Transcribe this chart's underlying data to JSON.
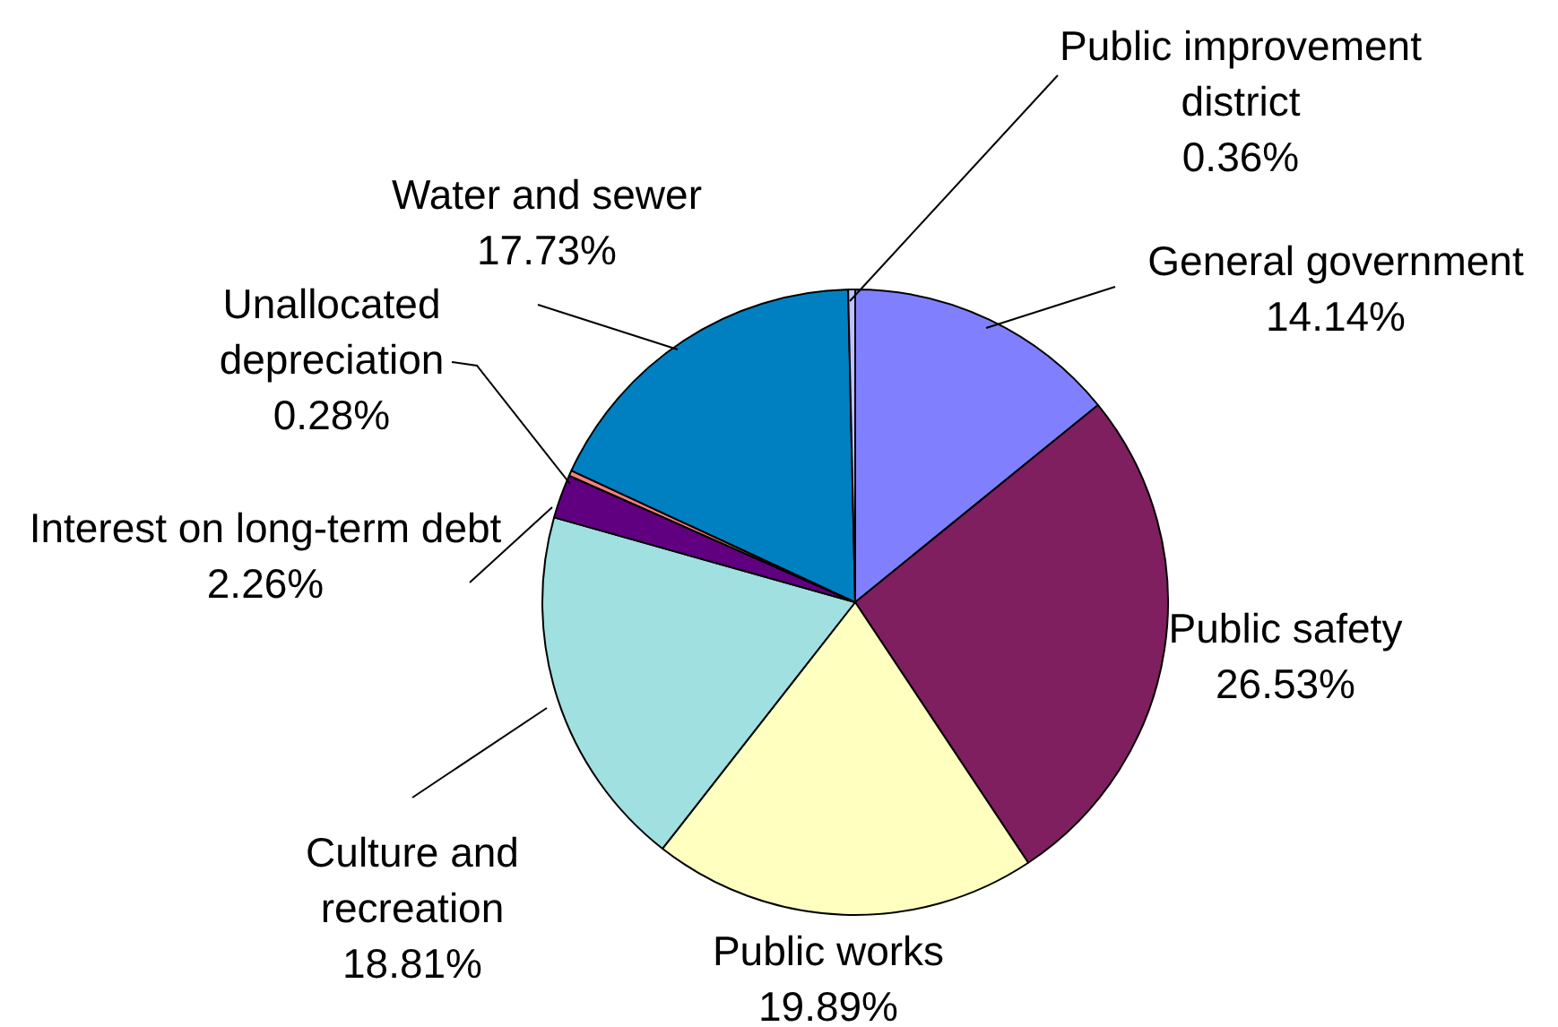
{
  "chart_data": {
    "type": "pie",
    "categories": [
      "General government",
      "Public safety",
      "Public works",
      "Culture and recreation",
      "Interest on long-term debt",
      "Unallocated depreciation",
      "Water and sewer",
      "Public improvement district"
    ],
    "values": [
      14.14,
      26.53,
      19.89,
      18.81,
      2.26,
      0.28,
      17.73,
      0.36
    ],
    "value_labels": [
      "14.14%",
      "26.53%",
      "19.89%",
      "18.81%",
      "2.26%",
      "0.28%",
      "17.73%",
      "0.36%"
    ],
    "colors": [
      "#8080ff",
      "#7f1f5f",
      "#ffffc0",
      "#a0e0e0",
      "#600080",
      "#ff8080",
      "#0080c0",
      "#c0c0ff"
    ],
    "legend": false
  }
}
